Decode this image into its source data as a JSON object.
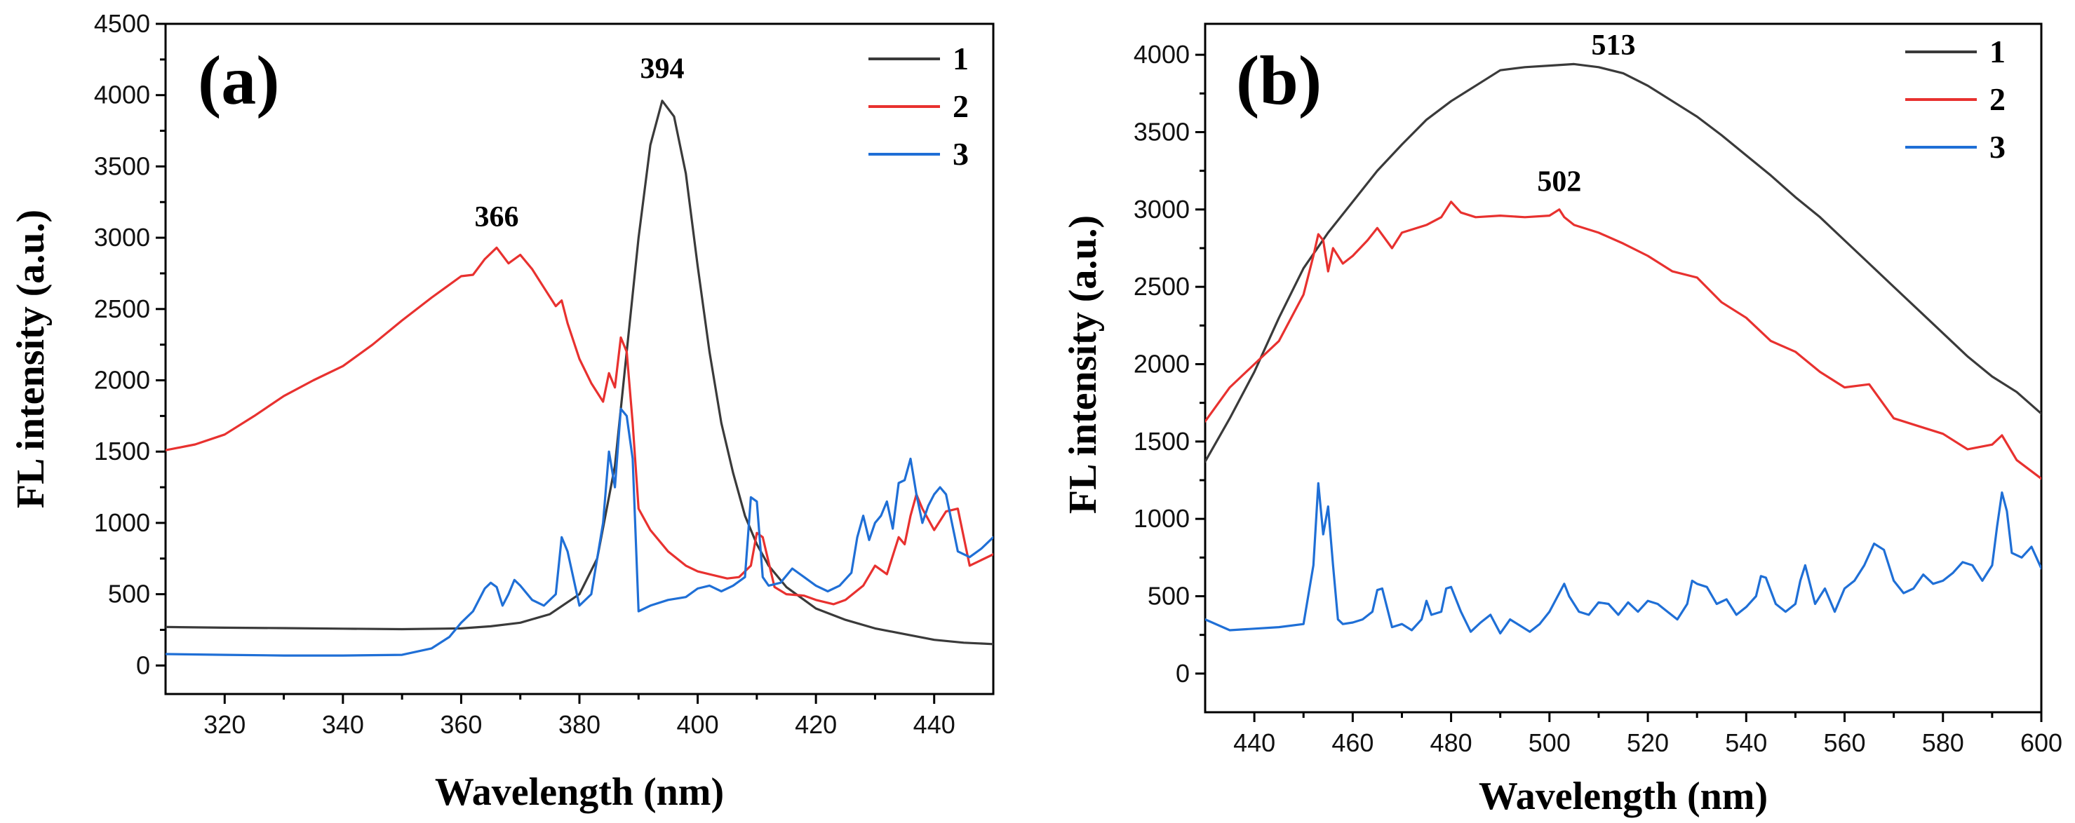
{
  "chart_data": [
    {
      "type": "line",
      "panel_label": "(a)",
      "xlabel": "Wavelength (nm)",
      "ylabel": "FL intensity (a.u.)",
      "xlim": [
        310,
        450
      ],
      "ylim": [
        -200,
        4500
      ],
      "xticks": [
        320,
        340,
        360,
        380,
        400,
        420,
        440
      ],
      "yticks": [
        0,
        500,
        1000,
        1500,
        2000,
        2500,
        3000,
        3500,
        4000,
        4500
      ],
      "legend": "top-right",
      "annotations": [
        {
          "text": "394",
          "x": 394,
          "y": 4120
        },
        {
          "text": "366",
          "x": 366,
          "y": 3080
        }
      ],
      "series": [
        {
          "name": "1",
          "color": "#3a3a3a",
          "x": [
            310,
            320,
            330,
            340,
            350,
            360,
            365,
            370,
            375,
            380,
            383,
            386,
            388,
            390,
            392,
            394,
            396,
            398,
            400,
            402,
            404,
            406,
            408,
            410,
            412,
            415,
            420,
            425,
            430,
            435,
            440,
            445,
            450
          ],
          "y": [
            270,
            265,
            262,
            258,
            255,
            260,
            275,
            300,
            360,
            500,
            750,
            1400,
            2200,
            3000,
            3650,
            3960,
            3850,
            3450,
            2800,
            2200,
            1700,
            1350,
            1050,
            850,
            700,
            550,
            400,
            320,
            260,
            220,
            180,
            160,
            150
          ]
        },
        {
          "name": "2",
          "color": "#e8312f",
          "x": [
            310,
            315,
            320,
            325,
            330,
            335,
            340,
            345,
            350,
            355,
            360,
            362,
            364,
            366,
            368,
            370,
            372,
            374,
            376,
            377,
            378,
            380,
            382,
            384,
            385,
            386,
            387,
            388,
            389,
            390,
            392,
            395,
            398,
            400,
            403,
            405,
            407,
            409,
            410,
            411,
            413,
            415,
            418,
            420,
            423,
            425,
            428,
            430,
            432,
            434,
            435,
            436,
            437,
            438,
            440,
            442,
            444,
            446,
            450
          ],
          "y": [
            1510,
            1550,
            1620,
            1750,
            1890,
            2000,
            2100,
            2250,
            2420,
            2580,
            2730,
            2740,
            2850,
            2930,
            2820,
            2880,
            2780,
            2650,
            2520,
            2560,
            2400,
            2150,
            1980,
            1850,
            2050,
            1950,
            2300,
            2200,
            1700,
            1100,
            950,
            800,
            700,
            660,
            630,
            610,
            620,
            700,
            930,
            900,
            550,
            500,
            490,
            460,
            430,
            460,
            560,
            700,
            640,
            900,
            850,
            1050,
            1200,
            1100,
            950,
            1080,
            1100,
            700,
            780
          ]
        },
        {
          "name": "3",
          "color": "#1f6fd6",
          "x": [
            310,
            320,
            330,
            340,
            350,
            355,
            358,
            360,
            362,
            364,
            365,
            366,
            367,
            368,
            369,
            370,
            372,
            374,
            376,
            377,
            378,
            380,
            382,
            384,
            385,
            386,
            387,
            388,
            389,
            390,
            392,
            395,
            398,
            400,
            402,
            404,
            406,
            408,
            409,
            410,
            411,
            412,
            414,
            416,
            418,
            420,
            422,
            424,
            426,
            427,
            428,
            429,
            430,
            431,
            432,
            433,
            434,
            435,
            436,
            437,
            438,
            439,
            440,
            441,
            442,
            443,
            444,
            446,
            448,
            450
          ],
          "y": [
            80,
            75,
            70,
            70,
            75,
            120,
            200,
            300,
            380,
            540,
            580,
            550,
            420,
            500,
            600,
            560,
            460,
            420,
            500,
            900,
            800,
            420,
            500,
            1000,
            1500,
            1250,
            1800,
            1750,
            1450,
            380,
            420,
            460,
            480,
            540,
            560,
            520,
            560,
            620,
            1180,
            1150,
            620,
            560,
            580,
            680,
            620,
            560,
            520,
            560,
            650,
            900,
            1050,
            880,
            1000,
            1050,
            1150,
            960,
            1280,
            1300,
            1450,
            1200,
            1000,
            1120,
            1200,
            1250,
            1200,
            1000,
            800,
            760,
            820,
            900
          ]
        }
      ]
    },
    {
      "type": "line",
      "panel_label": "(b)",
      "xlabel": "Wavelength (nm)",
      "ylabel": "FL intensity (a.u.)",
      "xlim": [
        430,
        600
      ],
      "ylim": [
        -250,
        4200
      ],
      "xticks": [
        440,
        460,
        480,
        500,
        520,
        540,
        560,
        580,
        600
      ],
      "yticks": [
        0,
        500,
        1000,
        1500,
        2000,
        2500,
        3000,
        3500,
        4000
      ],
      "legend": "top-right",
      "annotations": [
        {
          "text": "513",
          "x": 513,
          "y": 4000
        },
        {
          "text": "502",
          "x": 502,
          "y": 3120
        }
      ],
      "series": [
        {
          "name": "1",
          "color": "#3a3a3a",
          "x": [
            430,
            435,
            440,
            445,
            450,
            455,
            460,
            465,
            470,
            475,
            480,
            485,
            490,
            495,
            500,
            505,
            510,
            515,
            520,
            525,
            530,
            535,
            540,
            545,
            550,
            555,
            560,
            565,
            570,
            575,
            580,
            585,
            590,
            595,
            600
          ],
          "y": [
            1370,
            1650,
            1950,
            2300,
            2620,
            2850,
            3050,
            3250,
            3420,
            3580,
            3700,
            3800,
            3900,
            3920,
            3930,
            3940,
            3920,
            3880,
            3800,
            3700,
            3600,
            3480,
            3350,
            3220,
            3080,
            2950,
            2800,
            2650,
            2500,
            2350,
            2200,
            2050,
            1920,
            1820,
            1680
          ]
        },
        {
          "name": "2",
          "color": "#e8312f",
          "x": [
            430,
            435,
            440,
            445,
            450,
            452,
            453,
            454,
            455,
            456,
            458,
            460,
            463,
            465,
            468,
            470,
            475,
            478,
            480,
            482,
            485,
            490,
            495,
            500,
            502,
            503,
            505,
            510,
            515,
            520,
            525,
            530,
            535,
            540,
            545,
            550,
            555,
            560,
            565,
            570,
            575,
            580,
            585,
            590,
            592,
            595,
            600
          ],
          "y": [
            1630,
            1850,
            2000,
            2150,
            2450,
            2700,
            2840,
            2800,
            2600,
            2750,
            2650,
            2700,
            2800,
            2880,
            2750,
            2850,
            2900,
            2950,
            3050,
            2980,
            2950,
            2960,
            2950,
            2960,
            3000,
            2950,
            2900,
            2850,
            2780,
            2700,
            2600,
            2560,
            2400,
            2300,
            2150,
            2080,
            1950,
            1850,
            1870,
            1650,
            1600,
            1550,
            1450,
            1480,
            1540,
            1380,
            1260
          ]
        },
        {
          "name": "3",
          "color": "#1f6fd6",
          "x": [
            430,
            435,
            440,
            445,
            450,
            452,
            453,
            454,
            455,
            456,
            457,
            458,
            460,
            462,
            464,
            465,
            466,
            468,
            470,
            472,
            474,
            475,
            476,
            478,
            479,
            480,
            482,
            484,
            486,
            488,
            490,
            492,
            494,
            496,
            498,
            500,
            502,
            503,
            504,
            506,
            508,
            510,
            512,
            514,
            516,
            518,
            520,
            522,
            524,
            526,
            528,
            529,
            530,
            532,
            534,
            536,
            538,
            540,
            542,
            543,
            544,
            546,
            548,
            550,
            551,
            552,
            554,
            556,
            558,
            560,
            562,
            564,
            566,
            568,
            570,
            572,
            574,
            576,
            578,
            580,
            582,
            584,
            586,
            588,
            590,
            591,
            592,
            593,
            594,
            596,
            598,
            600
          ],
          "y": [
            350,
            280,
            290,
            300,
            320,
            700,
            1230,
            900,
            1080,
            700,
            350,
            320,
            330,
            350,
            400,
            540,
            550,
            300,
            320,
            280,
            350,
            470,
            380,
            400,
            550,
            560,
            400,
            270,
            330,
            380,
            260,
            350,
            310,
            270,
            320,
            400,
            520,
            580,
            500,
            400,
            380,
            460,
            450,
            380,
            460,
            400,
            470,
            450,
            400,
            350,
            450,
            600,
            580,
            560,
            450,
            480,
            380,
            430,
            500,
            630,
            620,
            450,
            400,
            450,
            600,
            700,
            450,
            550,
            400,
            550,
            600,
            700,
            840,
            800,
            600,
            520,
            550,
            640,
            580,
            600,
            650,
            720,
            700,
            600,
            700,
            950,
            1170,
            1050,
            780,
            750,
            820,
            680
          ]
        }
      ]
    }
  ]
}
